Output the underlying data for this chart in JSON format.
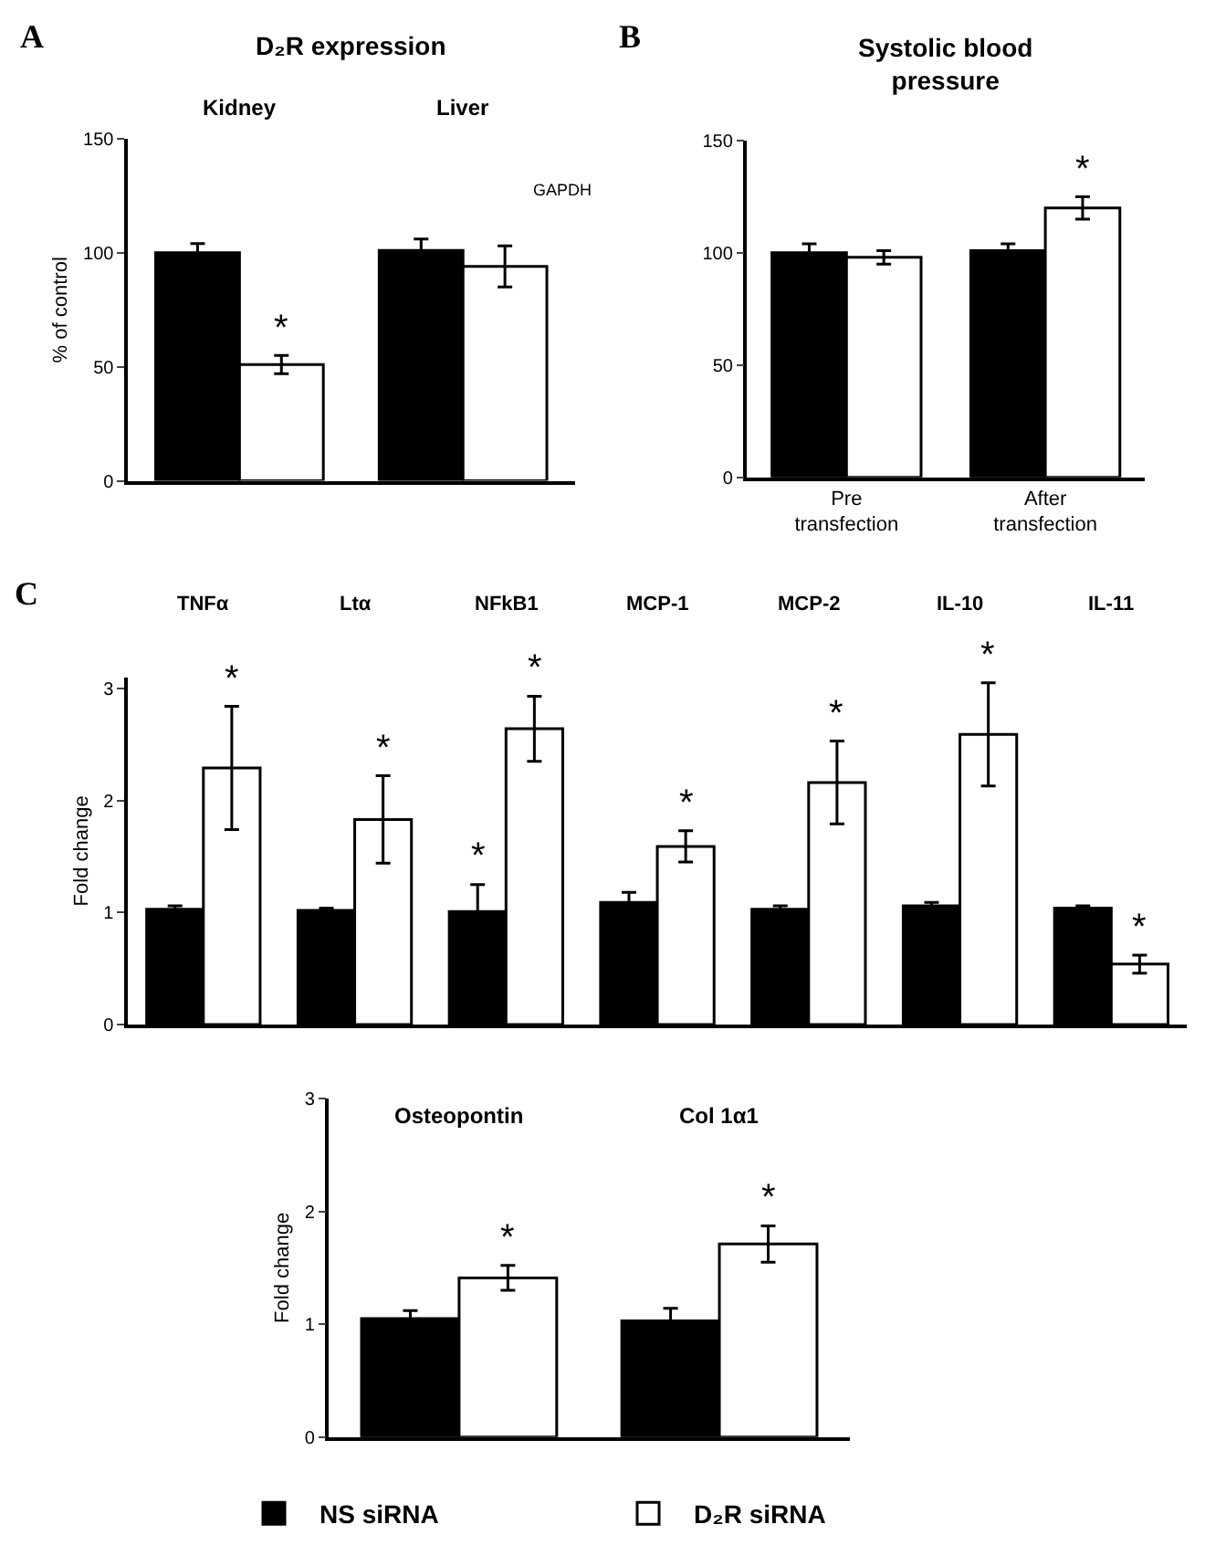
{
  "chart_data": [
    {
      "type": "bar",
      "title": "D₂R expression",
      "ylabel": "% of control",
      "categories": [
        "Kidney",
        "Liver"
      ],
      "series": [
        {
          "color": "#000000",
          "values": [
            100,
            101
          ],
          "errors": [
            4,
            5
          ]
        },
        {
          "color": "#ffffff",
          "values": [
            51,
            94
          ],
          "errors": [
            4,
            9
          ],
          "value_labels": [
            "*",
            null
          ]
        }
      ],
      "ylim": [
        0,
        150
      ],
      "yticks": [
        0,
        50,
        100,
        150
      ],
      "annotations": [
        "A",
        "GAPDH"
      ]
    },
    {
      "type": "bar",
      "title": "Systolic blood\npressure",
      "categories": [
        "Pre\ntransfection",
        "After\ntransfection"
      ],
      "series": [
        {
          "color": "#000000",
          "values": [
            100,
            101
          ],
          "errors": [
            4,
            3
          ]
        },
        {
          "color": "#ffffff",
          "values": [
            98,
            120
          ],
          "errors": [
            3,
            5
          ],
          "value_labels": [
            null,
            "*"
          ]
        }
      ],
      "ylim": [
        0,
        150
      ],
      "yticks": [
        0,
        50,
        100,
        150
      ],
      "annotations": [
        "B"
      ]
    },
    {
      "type": "bar",
      "ylabel": "Fold change",
      "categories": [
        "TNFα",
        "Ltα",
        "NFkB1",
        "MCP-1",
        "MCP-2",
        "IL-10",
        "IL-11"
      ],
      "series": [
        {
          "color": "#000000",
          "values": [
            1.03,
            1.02,
            1.01,
            1.09,
            1.03,
            1.06,
            1.04
          ],
          "errors": [
            0.03,
            0.02,
            0.24,
            0.09,
            0.03,
            0.03,
            0.02
          ],
          "value_labels": [
            null,
            null,
            "*",
            null,
            null,
            null,
            null
          ]
        },
        {
          "color": "#ffffff",
          "values": [
            2.29,
            1.83,
            2.64,
            1.59,
            2.16,
            2.59,
            0.54
          ],
          "errors": [
            0.55,
            0.39,
            0.29,
            0.14,
            0.37,
            0.46,
            0.08
          ],
          "value_labels": [
            "*",
            "*",
            "*",
            "*",
            "*",
            "*",
            "*"
          ]
        }
      ],
      "ylim": [
        0,
        3.1
      ],
      "yticks": [
        0,
        1,
        2,
        3
      ],
      "annotations": [
        "C"
      ]
    },
    {
      "type": "bar",
      "ylabel": "Fold change",
      "categories": [
        "Osteopontin",
        "Col 1α1"
      ],
      "series": [
        {
          "name": "NS siRNA",
          "color": "#000000",
          "values": [
            1.05,
            1.03
          ],
          "errors": [
            0.07,
            0.11
          ]
        },
        {
          "name": "D₂R siRNA",
          "color": "#ffffff",
          "values": [
            1.41,
            1.71
          ],
          "errors": [
            0.11,
            0.16
          ],
          "value_labels": [
            "*",
            "*"
          ]
        }
      ],
      "ylim": [
        0,
        3
      ],
      "yticks": [
        0,
        1,
        2,
        3
      ],
      "legend": "bottom"
    }
  ]
}
